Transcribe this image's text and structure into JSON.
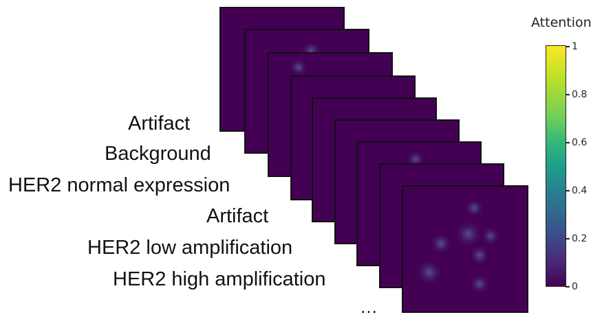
{
  "figure": {
    "labels": [
      "Artifact",
      "Background",
      "HER2 normal expression",
      "Artifact",
      "HER2 low amplification",
      "HER2 high amplification"
    ],
    "ellipsis": "…",
    "frame_color": "#440154",
    "frame_count": 9,
    "colorbar": {
      "title": "Attention",
      "colormap": "viridis",
      "range": [
        0,
        1
      ],
      "ticks": [
        "0",
        "0.2",
        "0.4",
        "0.6",
        "0.8",
        "1"
      ]
    }
  }
}
